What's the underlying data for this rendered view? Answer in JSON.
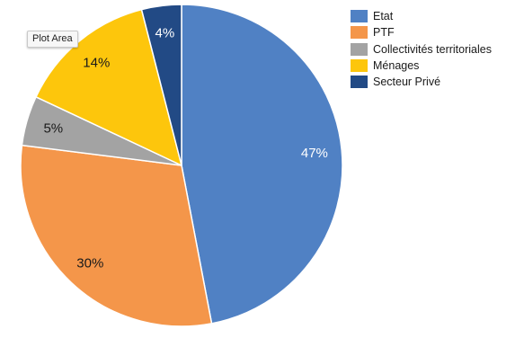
{
  "tooltip": {
    "text": "Plot Area"
  },
  "chart_data": {
    "type": "pie",
    "title": "",
    "legend_position": "right",
    "slices": [
      {
        "label": "Etat",
        "value": 47,
        "data_label": "47%",
        "color": "#5081c4"
      },
      {
        "label": "PTF",
        "value": 30,
        "data_label": "30%",
        "color": "#f4964a"
      },
      {
        "label": "Collectivités territoriales",
        "value": 5,
        "data_label": "5%",
        "color": "#a3a3a3"
      },
      {
        "label": "Ménages",
        "value": 14,
        "data_label": "14%",
        "color": "#fdc60c"
      },
      {
        "label": "Secteur Privé",
        "value": 4,
        "data_label": "4%",
        "color": "#224a85"
      }
    ]
  }
}
